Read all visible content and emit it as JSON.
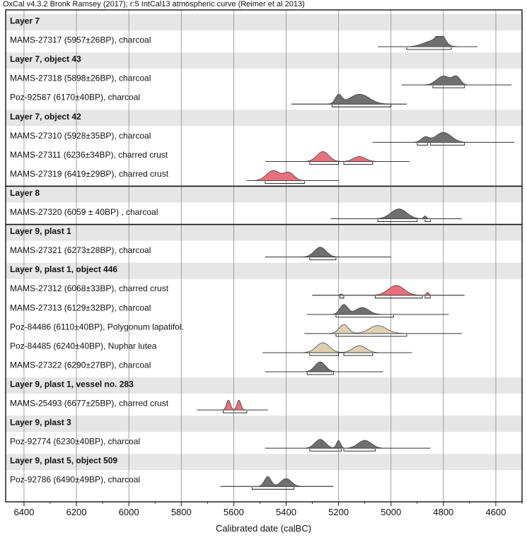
{
  "title": "OxCal v4.3.2 Bronk Ramsey (2017); r:5 IntCal13 atmospheric curve (Reimer et al 2013)",
  "colors": {
    "grey_fill": "#707070",
    "red_fill": "#e8707a",
    "beige_fill": "#ddd0b0",
    "group_band": "#e6e6e6",
    "gridline": "#8a8a8a"
  },
  "chart_data": {
    "type": "multiple-plot",
    "xlabel": "Calibrated date (calBC)",
    "xlim": [
      6470,
      4500
    ],
    "xticks": [
      6400,
      6200,
      6000,
      5800,
      5600,
      5400,
      5200,
      5000,
      4800,
      4600
    ],
    "tick_labels": [
      "6400",
      "6200",
      "6000",
      "5800",
      "5600",
      "5400",
      "5200",
      "5000",
      "4800",
      "4600"
    ],
    "rows": [
      {
        "kind": "group",
        "label": "Layer 7"
      },
      {
        "kind": "date",
        "label": "MAMS-27317 (5957±26BP), charcoal",
        "color": "grey",
        "range": [
          5050,
          4670
        ],
        "peaks": [
          {
            "c": 4840,
            "w": 70,
            "h": 0.6
          },
          {
            "c": 4810,
            "w": 30,
            "h": 1.0
          }
        ],
        "bars": [
          [
            4940,
            4770
          ]
        ]
      },
      {
        "kind": "group",
        "label": "Layer 7, object 43"
      },
      {
        "kind": "date",
        "label": "MAMS-27318 (5898±26BP), charcoal",
        "color": "grey",
        "range": [
          4960,
          4540
        ],
        "peaks": [
          {
            "c": 4800,
            "w": 50,
            "h": 0.9
          },
          {
            "c": 4750,
            "w": 30,
            "h": 0.8
          }
        ],
        "bars": [
          [
            4840,
            4720
          ]
        ]
      },
      {
        "kind": "date",
        "label": "Poz-92587 (6170±40BP), charcoal",
        "color": "grey",
        "range": [
          5380,
          4940
        ],
        "peaks": [
          {
            "c": 5200,
            "w": 25,
            "h": 0.9
          },
          {
            "c": 5120,
            "w": 75,
            "h": 1.0
          }
        ],
        "bars": [
          [
            5225,
            5000
          ]
        ]
      },
      {
        "kind": "group",
        "label": "Layer 7, object 42"
      },
      {
        "kind": "date",
        "label": "MAMS-27310 (5928±35BP), charcoal",
        "color": "grey",
        "range": [
          5070,
          4530
        ],
        "peaks": [
          {
            "c": 4870,
            "w": 30,
            "h": 0.5
          },
          {
            "c": 4800,
            "w": 60,
            "h": 1.0
          }
        ],
        "bars": [
          [
            4900,
            4860
          ],
          [
            4850,
            4720
          ]
        ]
      },
      {
        "kind": "date",
        "label": "MAMS-27311 (6236±34BP), charred crust",
        "color": "red",
        "range": [
          5480,
          4930
        ],
        "peaks": [
          {
            "c": 5260,
            "w": 45,
            "h": 1.0
          },
          {
            "c": 5120,
            "w": 45,
            "h": 0.5
          }
        ],
        "bars": [
          [
            5310,
            5200
          ],
          [
            5180,
            5070
          ]
        ]
      },
      {
        "kind": "date",
        "label": "MAMS-27319 (6419±29BP), charred crust",
        "color": "red",
        "range": [
          5550,
          5200
        ],
        "peaks": [
          {
            "c": 5450,
            "w": 50,
            "h": 1.0
          },
          {
            "c": 5390,
            "w": 40,
            "h": 0.8
          }
        ],
        "bars": [
          [
            5480,
            5330
          ]
        ]
      },
      {
        "kind": "group",
        "label": "Layer 8"
      },
      {
        "kind": "date",
        "label": "MAMS-27320 (6059 ± 40BP) , charcoal",
        "color": "grey",
        "range": [
          5230,
          4730
        ],
        "peaks": [
          {
            "c": 4970,
            "w": 60,
            "h": 1.0
          },
          {
            "c": 4870,
            "w": 10,
            "h": 0.3
          }
        ],
        "bars": [
          [
            5050,
            4900
          ],
          [
            4870,
            4850
          ]
        ]
      },
      {
        "kind": "group",
        "label": "Layer 9, plast 1"
      },
      {
        "kind": "date",
        "label": "MAMS-27321 (6273±28BP), charcoal",
        "color": "grey",
        "range": [
          5480,
          5000
        ],
        "peaks": [
          {
            "c": 5270,
            "w": 45,
            "h": 1.0
          }
        ],
        "bars": [
          [
            5310,
            5210
          ]
        ]
      },
      {
        "kind": "group",
        "label": "Layer 9, plast 1, object 446"
      },
      {
        "kind": "date",
        "label": "MAMS-27312 (6068±33BP), charred crust",
        "color": "red",
        "range": [
          5300,
          4720
        ],
        "peaks": [
          {
            "c": 4980,
            "w": 60,
            "h": 1.0
          },
          {
            "c": 4860,
            "w": 10,
            "h": 0.3
          },
          {
            "c": 5190,
            "w": 8,
            "h": 0.15
          }
        ],
        "bars": [
          [
            5195,
            5180
          ],
          [
            5060,
            4880
          ],
          [
            4870,
            4850
          ]
        ]
      },
      {
        "kind": "date",
        "label": "MAMS-27313 (6129±32BP), charcoal",
        "color": "grey",
        "range": [
          5320,
          4780
        ],
        "peaks": [
          {
            "c": 5180,
            "w": 30,
            "h": 1.0
          },
          {
            "c": 5110,
            "w": 50,
            "h": 0.7
          }
        ],
        "bars": [
          [
            5210,
            4990
          ]
        ]
      },
      {
        "kind": "date",
        "label": "Poz-84486 (6110±40BP), Polygonum lapatifol.",
        "color": "beige",
        "range": [
          5330,
          4730
        ],
        "peaks": [
          {
            "c": 5180,
            "w": 35,
            "h": 0.9
          },
          {
            "c": 5050,
            "w": 65,
            "h": 0.8
          }
        ],
        "bars": [
          [
            5210,
            4940
          ]
        ]
      },
      {
        "kind": "date",
        "label": "Poz-84485 (6240±40BP), Nuphar lutea",
        "color": "beige",
        "range": [
          5490,
          4920
        ],
        "peaks": [
          {
            "c": 5260,
            "w": 50,
            "h": 1.0
          },
          {
            "c": 5120,
            "w": 50,
            "h": 0.7
          }
        ],
        "bars": [
          [
            5310,
            5200
          ],
          [
            5180,
            5070
          ]
        ]
      },
      {
        "kind": "date",
        "label": "MAMS-27322 (6290±27BP), charcoal",
        "color": "grey",
        "range": [
          5480,
          5030
        ],
        "peaks": [
          {
            "c": 5270,
            "w": 40,
            "h": 1.0
          }
        ],
        "bars": [
          [
            5320,
            5220
          ]
        ]
      },
      {
        "kind": "group",
        "label": "Layer 9, plast 1, vessel no. 283"
      },
      {
        "kind": "date",
        "label": "MAMS-25493 (6677±25BP), charred crust",
        "color": "red",
        "range": [
          5740,
          5470
        ],
        "peaks": [
          {
            "c": 5620,
            "w": 15,
            "h": 1.0
          },
          {
            "c": 5580,
            "w": 15,
            "h": 1.0
          }
        ],
        "bars": [
          [
            5640,
            5550
          ]
        ]
      },
      {
        "kind": "group",
        "label": "Layer 9, plast 3"
      },
      {
        "kind": "date",
        "label": "Poz-92774 (6230±40BP), charcoal",
        "color": "grey",
        "range": [
          5480,
          4850
        ],
        "peaks": [
          {
            "c": 5270,
            "w": 40,
            "h": 0.9
          },
          {
            "c": 5200,
            "w": 15,
            "h": 0.8
          },
          {
            "c": 5100,
            "w": 50,
            "h": 0.8
          }
        ],
        "bars": [
          [
            5310,
            5190
          ],
          [
            5180,
            5060
          ]
        ]
      },
      {
        "kind": "group",
        "label": "Layer 9, plast 5, object 509"
      },
      {
        "kind": "date",
        "label": "Poz-92786 (6490±49BP), charcoal",
        "color": "grey",
        "range": [
          5650,
          5220
        ],
        "peaks": [
          {
            "c": 5470,
            "w": 25,
            "h": 1.0
          },
          {
            "c": 5400,
            "w": 40,
            "h": 0.8
          }
        ],
        "bars": [
          [
            5530,
            5370
          ]
        ]
      }
    ]
  }
}
